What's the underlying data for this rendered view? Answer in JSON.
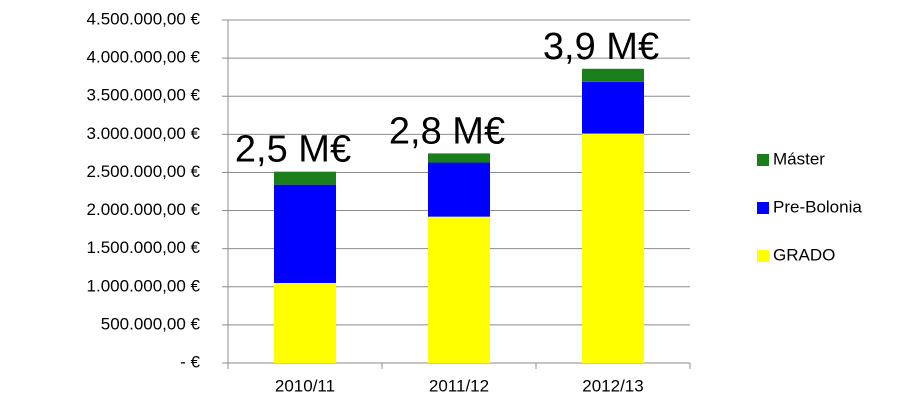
{
  "chart_data": {
    "type": "stacked_bar",
    "categories": [
      "2010/11",
      "2011/12",
      "2012/13"
    ],
    "series": [
      {
        "name": "GRADO",
        "color": "#ffff00",
        "values": [
          1050000,
          1920000,
          3010000
        ]
      },
      {
        "name": "Pre-Bolonia",
        "color": "#0000ff",
        "values": [
          1290000,
          710000,
          680000
        ]
      },
      {
        "name": "Máster",
        "color": "#1a7f1a",
        "values": [
          170000,
          120000,
          170000
        ]
      }
    ],
    "annotations": [
      "2,5 M€",
      "2,8 M€",
      "3,9 M€"
    ],
    "ylim": [
      0,
      4500000
    ],
    "yticks": [
      {
        "value": 0,
        "label": "-   €"
      },
      {
        "value": 500000,
        "label": "500.000,00 €"
      },
      {
        "value": 1000000,
        "label": "1.000.000,00 €"
      },
      {
        "value": 1500000,
        "label": "1.500.000,00 €"
      },
      {
        "value": 2000000,
        "label": "2.000.000,00 €"
      },
      {
        "value": 2500000,
        "label": "2.500.000,00 €"
      },
      {
        "value": 3000000,
        "label": "3.000.000,00 €"
      },
      {
        "value": 3500000,
        "label": "3.500.000,00 €"
      },
      {
        "value": 4000000,
        "label": "4.000.000,00 €"
      },
      {
        "value": 4500000,
        "label": "4.500.000,00 €"
      }
    ],
    "grid": true,
    "legend": "right"
  }
}
